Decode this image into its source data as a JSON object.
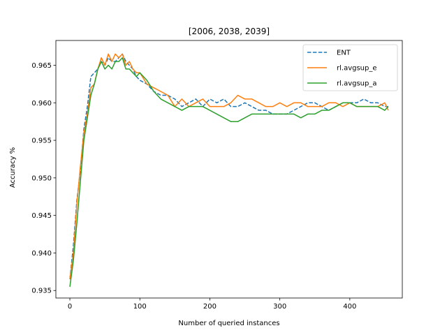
{
  "chart_data": {
    "type": "line",
    "title": "[2006, 2038, 2039]",
    "xlabel": "Number of queried instances",
    "ylabel": "Accuracy %",
    "xlim": [
      -20,
      475
    ],
    "ylim": [
      0.934,
      0.9683
    ],
    "xticks": [
      0,
      100,
      200,
      300,
      400
    ],
    "yticks": [
      0.935,
      0.94,
      0.945,
      0.95,
      0.955,
      0.96,
      0.965
    ],
    "ytick_labels": [
      "0.935",
      "0.940",
      "0.945",
      "0.950",
      "0.955",
      "0.960",
      "0.965"
    ],
    "xtick_labels": [
      "0",
      "100",
      "200",
      "300",
      "400"
    ],
    "grid": false,
    "legend_position": "top-right",
    "series": [
      {
        "name": "ENT",
        "color": "#1f77b4",
        "dash": "dashed",
        "x": [
          0,
          5,
          10,
          15,
          20,
          25,
          30,
          35,
          40,
          45,
          50,
          55,
          60,
          65,
          70,
          75,
          80,
          85,
          90,
          95,
          100,
          110,
          120,
          130,
          140,
          150,
          160,
          170,
          180,
          190,
          200,
          210,
          220,
          230,
          240,
          250,
          260,
          270,
          280,
          290,
          300,
          310,
          320,
          330,
          340,
          350,
          360,
          370,
          380,
          390,
          400,
          410,
          420,
          430,
          440,
          450,
          455
        ],
        "values": [
          0.9365,
          0.941,
          0.947,
          0.951,
          0.9565,
          0.9595,
          0.9635,
          0.964,
          0.9645,
          0.9655,
          0.965,
          0.966,
          0.9655,
          0.9655,
          0.966,
          0.9665,
          0.9655,
          0.965,
          0.9645,
          0.9635,
          0.963,
          0.9625,
          0.9615,
          0.961,
          0.961,
          0.9605,
          0.9595,
          0.96,
          0.9605,
          0.9595,
          0.9605,
          0.96,
          0.9605,
          0.9595,
          0.9595,
          0.96,
          0.9595,
          0.959,
          0.959,
          0.9585,
          0.9585,
          0.9585,
          0.959,
          0.9595,
          0.96,
          0.96,
          0.9595,
          0.959,
          0.9595,
          0.96,
          0.96,
          0.96,
          0.9605,
          0.96,
          0.96,
          0.9595,
          0.9595
        ]
      },
      {
        "name": "rl.avgsup_e",
        "color": "#ff7f0e",
        "dash": "solid",
        "x": [
          0,
          5,
          10,
          15,
          20,
          25,
          30,
          35,
          40,
          45,
          50,
          55,
          60,
          65,
          70,
          75,
          80,
          85,
          90,
          95,
          100,
          110,
          120,
          130,
          140,
          150,
          160,
          170,
          180,
          190,
          200,
          210,
          220,
          230,
          240,
          250,
          260,
          270,
          280,
          290,
          300,
          310,
          320,
          330,
          340,
          350,
          360,
          370,
          380,
          390,
          400,
          410,
          420,
          430,
          440,
          450,
          455
        ],
        "values": [
          0.9365,
          0.94,
          0.9465,
          0.9515,
          0.956,
          0.9585,
          0.962,
          0.9625,
          0.9645,
          0.966,
          0.965,
          0.9665,
          0.9655,
          0.9665,
          0.966,
          0.9665,
          0.965,
          0.9655,
          0.9645,
          0.964,
          0.964,
          0.9625,
          0.962,
          0.9615,
          0.961,
          0.9595,
          0.9605,
          0.9595,
          0.96,
          0.9605,
          0.9595,
          0.9595,
          0.9595,
          0.96,
          0.961,
          0.9605,
          0.9605,
          0.96,
          0.9595,
          0.9595,
          0.96,
          0.9595,
          0.96,
          0.96,
          0.9595,
          0.9595,
          0.9595,
          0.96,
          0.96,
          0.9595,
          0.96,
          0.9595,
          0.9595,
          0.9595,
          0.9595,
          0.96,
          0.959
        ]
      },
      {
        "name": "rl.avgsup_a",
        "color": "#2ca02c",
        "dash": "solid",
        "x": [
          0,
          5,
          10,
          15,
          20,
          25,
          30,
          35,
          40,
          45,
          50,
          55,
          60,
          65,
          70,
          75,
          80,
          85,
          90,
          95,
          100,
          110,
          120,
          130,
          140,
          150,
          160,
          170,
          180,
          190,
          200,
          210,
          220,
          230,
          240,
          250,
          260,
          270,
          280,
          290,
          300,
          310,
          320,
          330,
          340,
          350,
          360,
          370,
          380,
          390,
          400,
          410,
          420,
          430,
          440,
          450,
          455
        ],
        "values": [
          0.9355,
          0.939,
          0.944,
          0.9495,
          0.955,
          0.958,
          0.961,
          0.9625,
          0.9645,
          0.9655,
          0.9645,
          0.965,
          0.9645,
          0.9655,
          0.9655,
          0.966,
          0.9645,
          0.9645,
          0.964,
          0.9635,
          0.964,
          0.963,
          0.9615,
          0.9605,
          0.96,
          0.9595,
          0.959,
          0.9595,
          0.9595,
          0.9595,
          0.959,
          0.9585,
          0.958,
          0.9575,
          0.9575,
          0.958,
          0.9585,
          0.9585,
          0.9585,
          0.9585,
          0.9585,
          0.9585,
          0.9585,
          0.958,
          0.9585,
          0.9585,
          0.959,
          0.959,
          0.9595,
          0.96,
          0.96,
          0.9595,
          0.9595,
          0.9595,
          0.9595,
          0.959,
          0.9595
        ]
      }
    ]
  }
}
